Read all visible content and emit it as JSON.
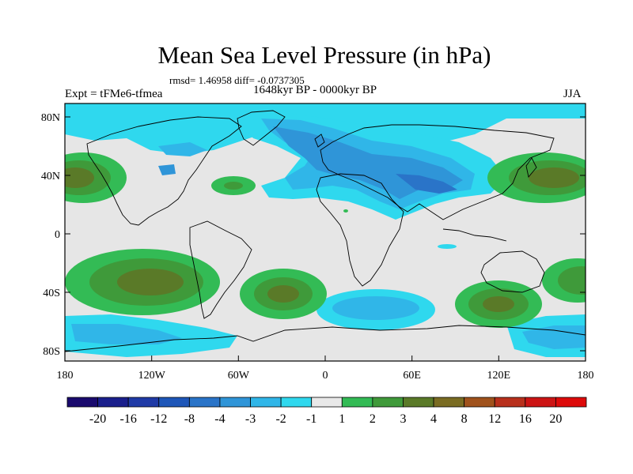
{
  "header": {
    "title": "Mean Sea Level Pressure (in hPa)",
    "stats": "rmsd= 1.46958  diff= -0.0737305",
    "period": "1648kyr BP - 0000kyr BP",
    "experiment": "Expt = tFMe6-tfmea",
    "season": "JJA"
  },
  "axes": {
    "y_ticks": [
      "80N",
      "40N",
      "0",
      "40S",
      "80S"
    ],
    "x_ticks": [
      "180",
      "120W",
      "60W",
      "0",
      "60E",
      "120E",
      "180"
    ]
  },
  "colorbar": {
    "labels": [
      "-20",
      "-16",
      "-12",
      "-8",
      "-4",
      "-3",
      "-2",
      "-1",
      "1",
      "2",
      "3",
      "4",
      "8",
      "12",
      "16",
      "20"
    ],
    "colors": [
      "#1a0a6e",
      "#1a1f8c",
      "#1f3aa6",
      "#1e56b8",
      "#2a74c8",
      "#2f95d8",
      "#30b6e8",
      "#2fd8ee",
      "#e8e8e8",
      "#33bb55",
      "#3f9a3a",
      "#5a7a28",
      "#7a6c22",
      "#a0521c",
      "#b8301c",
      "#cc1414",
      "#dd0a0a"
    ]
  },
  "map": {
    "background": "#e6e6e6",
    "anomaly_colors": {
      "neg1": "#2fd8ee",
      "neg2": "#30b6e8",
      "neg3": "#2f95d8",
      "neg4": "#2a74c8",
      "neg8": "#1e56b8",
      "pos1": "#33bb55",
      "pos2": "#3f9a3a",
      "pos3": "#5a7a28",
      "pos4": "#7a6c22"
    }
  }
}
